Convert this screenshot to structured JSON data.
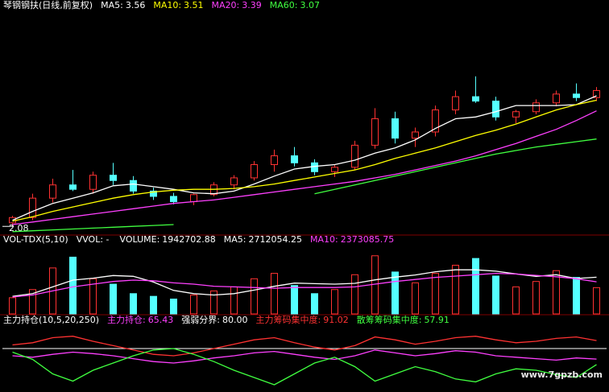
{
  "watermark": "www.7gpzb.com",
  "chart_data": [
    {
      "type": "candlestick",
      "title": "琴钢钢扶(日线,前复权)",
      "legend": [
        {
          "label": "MA5:",
          "value": 3.56,
          "color": "#ffffff"
        },
        {
          "label": "MA10:",
          "value": 3.51,
          "color": "#ffff00"
        },
        {
          "label": "MA20:",
          "value": 3.39,
          "color": "#ff40ff"
        },
        {
          "label": "MA60:",
          "value": 3.07,
          "color": "#40ff40"
        }
      ],
      "open": [
        2.12,
        2.18,
        2.4,
        2.55,
        2.5,
        2.66,
        2.6,
        2.48,
        2.42,
        2.36,
        2.44,
        2.55,
        2.63,
        2.78,
        2.88,
        2.8,
        2.7,
        2.75,
        3.0,
        3.3,
        3.08,
        3.15,
        3.4,
        3.55,
        3.5,
        3.32,
        3.38,
        3.48,
        3.58,
        3.54
      ],
      "high": [
        2.2,
        2.45,
        2.62,
        2.72,
        2.7,
        2.8,
        2.65,
        2.52,
        2.46,
        2.45,
        2.58,
        2.66,
        2.82,
        2.95,
        2.98,
        2.84,
        2.78,
        3.05,
        3.42,
        3.38,
        3.2,
        3.45,
        3.62,
        3.78,
        3.55,
        3.4,
        3.52,
        3.62,
        3.7,
        3.66
      ],
      "low": [
        2.08,
        2.15,
        2.35,
        2.48,
        2.45,
        2.55,
        2.45,
        2.38,
        2.33,
        2.32,
        2.42,
        2.5,
        2.6,
        2.7,
        2.76,
        2.66,
        2.64,
        2.72,
        2.96,
        3.02,
        2.98,
        3.1,
        3.35,
        3.48,
        3.28,
        3.25,
        3.35,
        3.44,
        3.5,
        3.5
      ],
      "close": [
        2.18,
        2.4,
        2.55,
        2.5,
        2.66,
        2.6,
        2.48,
        2.42,
        2.36,
        2.44,
        2.55,
        2.63,
        2.78,
        2.88,
        2.8,
        2.7,
        2.75,
        3.0,
        3.3,
        3.08,
        3.15,
        3.4,
        3.55,
        3.5,
        3.32,
        3.38,
        3.48,
        3.58,
        3.54,
        3.62
      ],
      "up_color": "#ff3232",
      "down_color": "#54ffff",
      "low_label": 2.08,
      "series": [
        {
          "color": "#ffffff",
          "values": [
            2.15,
            2.25,
            2.34,
            2.4,
            2.46,
            2.54,
            2.56,
            2.53,
            2.5,
            2.46,
            2.45,
            2.48,
            2.56,
            2.65,
            2.73,
            2.76,
            2.78,
            2.83,
            2.91,
            2.97,
            3.06,
            3.19,
            3.3,
            3.32,
            3.38,
            3.45,
            3.45,
            3.45,
            3.46,
            3.56
          ]
        },
        {
          "color": "#ffff00",
          "values": [
            2.14,
            2.19,
            2.25,
            2.3,
            2.35,
            2.4,
            2.44,
            2.47,
            2.49,
            2.5,
            2.5,
            2.51,
            2.53,
            2.56,
            2.6,
            2.64,
            2.68,
            2.72,
            2.78,
            2.85,
            2.91,
            2.97,
            3.04,
            3.11,
            3.17,
            3.24,
            3.32,
            3.4,
            3.46,
            3.51
          ]
        },
        {
          "color": "#ff40ff",
          "values": [
            2.1,
            2.13,
            2.16,
            2.19,
            2.22,
            2.25,
            2.28,
            2.31,
            2.34,
            2.36,
            2.38,
            2.41,
            2.44,
            2.47,
            2.5,
            2.53,
            2.56,
            2.59,
            2.63,
            2.67,
            2.72,
            2.77,
            2.82,
            2.88,
            2.95,
            3.02,
            3.1,
            3.18,
            3.28,
            3.39
          ]
        },
        {
          "color": "#40ff40",
          "values": [
            2.02,
            2.03,
            2.04,
            2.05,
            2.06,
            2.07,
            2.08,
            2.09,
            2.1,
            null,
            null,
            null,
            null,
            null,
            null,
            2.45,
            2.5,
            2.55,
            2.6,
            2.65,
            2.7,
            2.75,
            2.8,
            2.85,
            2.9,
            2.94,
            2.98,
            3.01,
            3.04,
            3.07
          ]
        }
      ],
      "ylim": [
        2.0,
        4.5
      ]
    },
    {
      "type": "volume",
      "title": "VOL-TDX(5,10)",
      "legend": [
        {
          "label": "VVOL: -",
          "color": "#ffffff"
        },
        {
          "label": "VOLUME:",
          "value": 1942702.88,
          "color": "#ffffff"
        },
        {
          "label": "MA5:",
          "value": 2712054.25,
          "color": "#ffffff"
        },
        {
          "label": "MA10:",
          "value": 2373085.75,
          "color": "#ff40ff"
        }
      ],
      "values": [
        1200000,
        1800000,
        3400000,
        4200000,
        2600000,
        2200000,
        1500000,
        1300000,
        1100000,
        1400000,
        1700000,
        2000000,
        2600000,
        3000000,
        2100000,
        1500000,
        1800000,
        2900000,
        4300000,
        3100000,
        2300000,
        3000000,
        3600000,
        4100000,
        2800000,
        2000000,
        2400000,
        3200000,
        2700000,
        1942702.88
      ],
      "series": [
        {
          "color": "#ffffff",
          "values": [
            1300000,
            1500000,
            2000000,
            2500000,
            2640000,
            2840000,
            2780000,
            2360000,
            1740000,
            1500000,
            1400000,
            1500000,
            1760000,
            2040000,
            2280000,
            2240000,
            2200000,
            2260000,
            2520000,
            2720000,
            2880000,
            3120000,
            3260000,
            3260000,
            3160000,
            2960000,
            2780000,
            2900000,
            2620000,
            2712054.25
          ]
        },
        {
          "color": "#ff40ff",
          "values": [
            1250000,
            1400000,
            1700000,
            2000000,
            2200000,
            2400000,
            2500000,
            2450000,
            2300000,
            2200000,
            2050000,
            2000000,
            1950000,
            1900000,
            1950000,
            1950000,
            1950000,
            2000000,
            2200000,
            2400000,
            2550000,
            2700000,
            2800000,
            2900000,
            3000000,
            2950000,
            2850000,
            2750000,
            2600000,
            2373085.75
          ]
        }
      ],
      "ylim": [
        0,
        5000000
      ]
    },
    {
      "type": "indicator",
      "title": "主力持仓(10,5,20,250)",
      "legend": [
        {
          "label": "主力持仓:",
          "value": 65.43,
          "color": "#ff40ff"
        },
        {
          "label": "强弱分界:",
          "value": 80,
          "value_label": "80.00",
          "color": "#ffffff"
        },
        {
          "label": "主力筹码集中度:",
          "value": 91.02,
          "color": "#ff3232"
        },
        {
          "label": "散筹筹码集中度:",
          "value": 57.91,
          "color": "#40ff40"
        }
      ],
      "series": [
        {
          "color": "#ff40ff",
          "values": [
            70,
            68,
            72,
            75,
            73,
            70,
            66,
            62,
            60,
            63,
            67,
            70,
            74,
            76,
            72,
            68,
            65,
            70,
            78,
            74,
            70,
            73,
            77,
            75,
            70,
            68,
            66,
            64,
            67,
            65.43
          ]
        },
        {
          "color": "#ff3232",
          "values": [
            85,
            88,
            95,
            97,
            90,
            84,
            78,
            72,
            70,
            74,
            80,
            86,
            92,
            95,
            88,
            82,
            78,
            84,
            96,
            92,
            86,
            90,
            95,
            97,
            92,
            88,
            90,
            94,
            96,
            91.02
          ]
        },
        {
          "color": "#40ff40",
          "values": [
            75,
            65,
            45,
            35,
            50,
            60,
            70,
            78,
            80,
            72,
            62,
            50,
            40,
            30,
            45,
            60,
            68,
            55,
            35,
            45,
            55,
            48,
            38,
            34,
            45,
            52,
            50,
            44,
            40,
            57.91
          ]
        }
      ],
      "ylim": [
        20,
        110
      ]
    }
  ]
}
